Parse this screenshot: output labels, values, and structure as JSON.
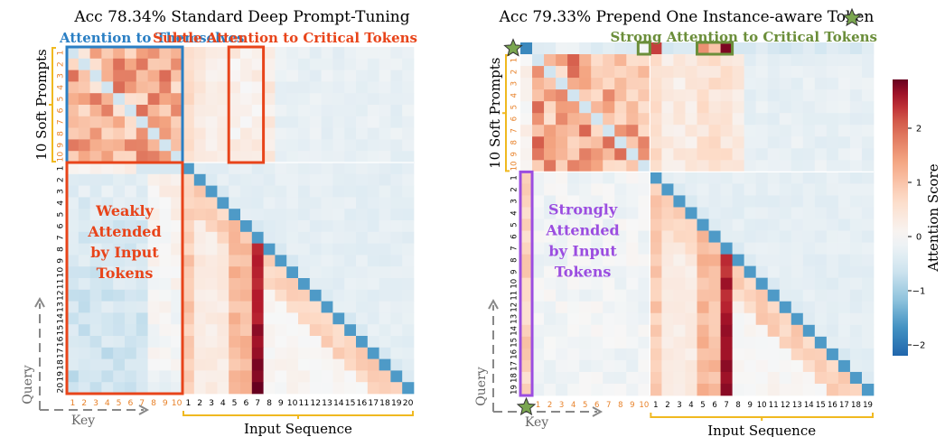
{
  "chart_data": [
    {
      "type": "heatmap",
      "panel": "left",
      "title": "Acc 78.34% Standard Deep Prompt-Tuning",
      "prompt_labels": [
        "1",
        "2",
        "3",
        "4",
        "5",
        "6",
        "7",
        "8",
        "9",
        "10"
      ],
      "input_labels": [
        "1",
        "2",
        "3",
        "4",
        "5",
        "6",
        "7",
        "8",
        "9",
        "10",
        "11",
        "12",
        "13",
        "14",
        "15",
        "16",
        "17",
        "18",
        "19",
        "20"
      ],
      "critical_tokens": [
        5,
        6,
        7
      ],
      "xlabel_key": "Key",
      "ylabel_query": "Query",
      "prompt_group_label": "10 Soft Prompts",
      "input_group_label": "Input Sequence",
      "annotations": {
        "self_attention": "Attention to Themselves",
        "critical": "Subtle Attention to Critical Tokens",
        "weak": [
          "Weakly",
          "Attended",
          "by Input",
          "Tokens"
        ]
      }
    },
    {
      "type": "heatmap",
      "panel": "right",
      "title": "Acc 79.33% Prepend One Instance-aware Token",
      "prompt_labels": [
        "1",
        "2",
        "3",
        "4",
        "5",
        "6",
        "7",
        "8",
        "9",
        "10"
      ],
      "input_labels": [
        "1",
        "2",
        "3",
        "4",
        "5",
        "6",
        "7",
        "8",
        "9",
        "10",
        "11",
        "12",
        "13",
        "14",
        "15",
        "16",
        "17",
        "18",
        "19"
      ],
      "critical_tokens": [
        5,
        6,
        7
      ],
      "instance_token": true,
      "xlabel_key": "Key",
      "ylabel_query": "Query",
      "prompt_group_label": "10 Soft Prompts",
      "input_group_label": "Input Sequence",
      "annotations": {
        "critical": "Strong Attention to Critical Tokens",
        "strong": [
          "Strongly",
          "Attended",
          "by Input",
          "Tokens"
        ]
      }
    }
  ],
  "colorbar": {
    "label": "Attention Score",
    "ticks": [
      2,
      1,
      0,
      -1,
      -2
    ],
    "tick_labels": [
      "2",
      "1",
      "0",
      "−1",
      "−2"
    ],
    "vmin": -2.2,
    "vmax": 2.9,
    "colors": {
      "low": "#2166ac",
      "mid": "#f7f7f7",
      "high": "#67001f"
    }
  },
  "colors": {
    "prompt_label": "#e8822a",
    "input_label": "#000000",
    "blue_box": "#2a7fc4",
    "red_box": "#e8441a",
    "green_box": "#6b8e3a",
    "purple_box": "#9b4de0",
    "bracket": "#f0b920",
    "star": "#7aa650"
  }
}
